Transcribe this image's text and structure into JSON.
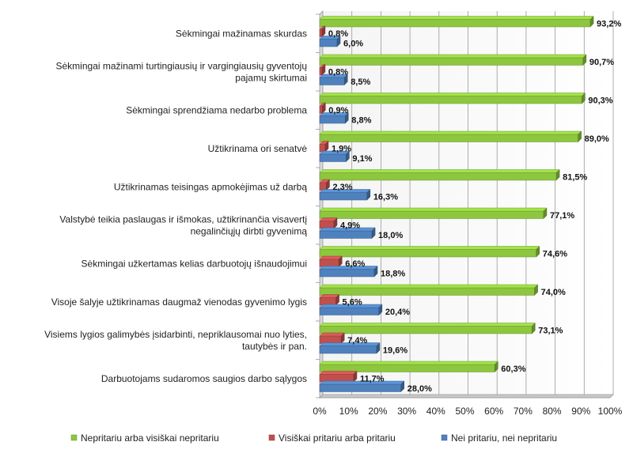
{
  "chart_data": {
    "type": "bar",
    "orientation": "horizontal",
    "title": "",
    "xlabel": "",
    "ylabel": "",
    "xlim": [
      0,
      100
    ],
    "x_ticks": [
      "0%",
      "10%",
      "20%",
      "30%",
      "40%",
      "50%",
      "60%",
      "70%",
      "80%",
      "90%",
      "100%"
    ],
    "grid": true,
    "legend_position": "bottom",
    "categories": [
      [
        "Sėkmingai mažinamas skurdas"
      ],
      [
        "Sėkmingai mažinami turtingiausių ir vargingiausių gyventojų",
        "pajamų skirtumai"
      ],
      [
        "Sėkmingai sprendžiama nedarbo problema"
      ],
      [
        "Užtikrinama ori senatvė"
      ],
      [
        "Užtikrinamas teisingas apmokėjimas už darbą"
      ],
      [
        "Valstybė teikia paslaugas ir išmokas, užtikrinančia visavertį",
        "negalinčiųjų dirbti gyvenimą"
      ],
      [
        "Sėkmingai užkertamas kelias darbuotojų išnaudojimui"
      ],
      [
        "Visoje šalyje užtikrinamas daugmaž vienodas gyvenimo lygis"
      ],
      [
        "Visiems lygios galimybės įsidarbinti, nepriklausomai nuo lyties,",
        "tautybės ir pan."
      ],
      [
        "Darbuotojams sudaromos saugios darbo sąlygos"
      ]
    ],
    "series": [
      {
        "name": "Nepritariu arba visiškai nepritariu",
        "color": "#8DC63F",
        "values": [
          93.2,
          90.7,
          90.3,
          89.0,
          81.5,
          77.1,
          74.6,
          74.0,
          73.1,
          60.3
        ],
        "labels": [
          "93,2%",
          "90,7%",
          "90,3%",
          "89,0%",
          "81,5%",
          "77,1%",
          "74,6%",
          "74,0%",
          "73,1%",
          "60,3%"
        ]
      },
      {
        "name": "Visiškai pritariu arba pritariu",
        "color": "#C0504D",
        "values": [
          0.8,
          0.8,
          0.9,
          1.9,
          2.3,
          4.9,
          6.6,
          5.6,
          7.4,
          11.7
        ],
        "labels": [
          "0,8%",
          "0,8%",
          "0,9%",
          "1,9%",
          "2,3%",
          "4,9%",
          "6,6%",
          "5,6%",
          "7,4%",
          "11,7%"
        ]
      },
      {
        "name": "Nei pritariu, nei nepritariu",
        "color": "#4F81BD",
        "values": [
          6.0,
          8.5,
          8.8,
          9.1,
          16.3,
          18.0,
          18.8,
          20.4,
          19.6,
          28.0
        ],
        "labels": [
          "6,0%",
          "8,5%",
          "8,8%",
          "9,1%",
          "16,3%",
          "18,0%",
          "18,8%",
          "20,4%",
          "19,6%",
          "28,0%"
        ]
      }
    ]
  }
}
